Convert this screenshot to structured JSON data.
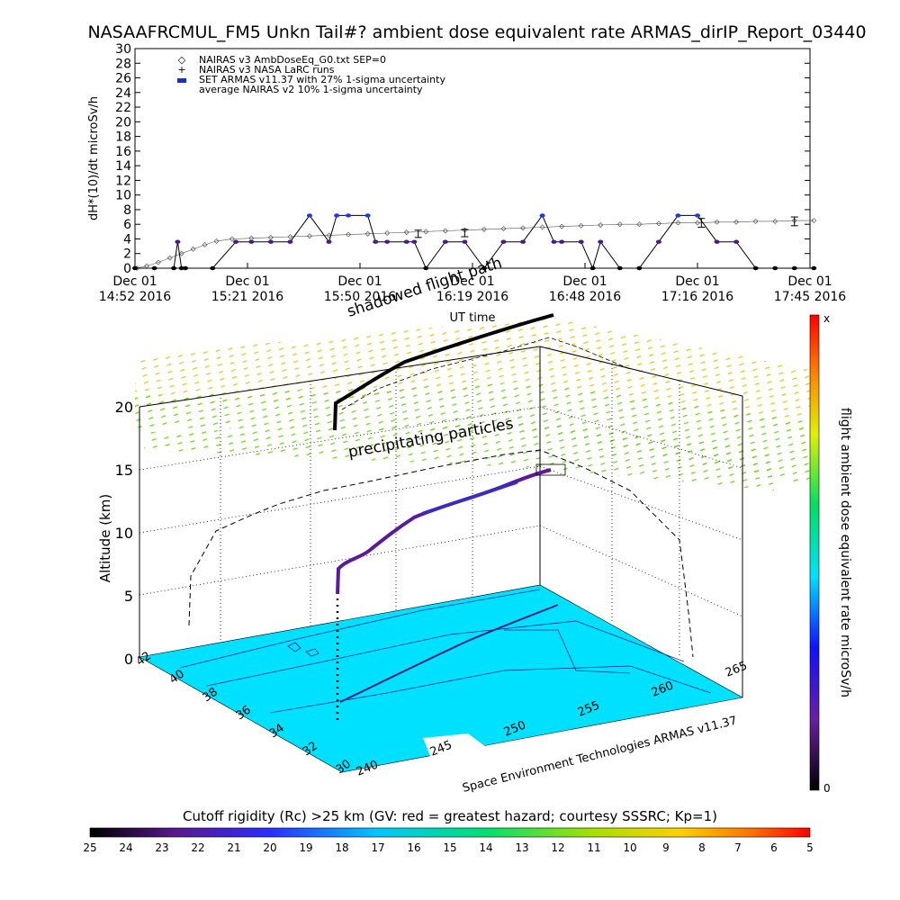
{
  "title": "NASAAFRCMUL_FM5 Unkn Tail#? ambient dose equivalent rate ARMAS_dirIP_Report_03440",
  "chart_data": [
    {
      "type": "line",
      "ylabel": "dH*(10)/dt microSv/h",
      "xlabel": "UT time",
      "ylim": [
        0,
        30
      ],
      "yticks": [
        "0",
        "2",
        "4",
        "6",
        "8",
        "10",
        "12",
        "14",
        "16",
        "18",
        "20",
        "22",
        "24",
        "26",
        "28",
        "30"
      ],
      "xticks": [
        {
          "line1": "Dec 01",
          "line2": "14:52 2016"
        },
        {
          "line1": "Dec 01",
          "line2": "15:21 2016"
        },
        {
          "line1": "Dec 01",
          "line2": "15:50 2016"
        },
        {
          "line1": "Dec 01",
          "line2": "16:19 2016"
        },
        {
          "line1": "Dec 01",
          "line2": "16:48 2016"
        },
        {
          "line1": "Dec 01",
          "line2": "17:16 2016"
        },
        {
          "line1": "Dec 01",
          "line2": "17:45 2016"
        }
      ],
      "legend": [
        {
          "symbol": "◇",
          "label": "NAIRAS v3 AmbDoseEq_G0.txt SEP=0"
        },
        {
          "symbol": "+",
          "label": "NAIRAS v3 NASA LaRC runs"
        },
        {
          "symbol": "●",
          "label": "SET ARMAS v11.37 with 27% 1-sigma uncertainty"
        },
        {
          "symbol": "",
          "label": "average NAIRAS v2 10% 1-sigma uncertainty"
        }
      ],
      "series": [
        {
          "name": "NAIRAS v3 AmbDoseEq_G0.txt SEP=0",
          "x_minutes": [
            0.5,
            3,
            6,
            9,
            12,
            15,
            18,
            21,
            25,
            30,
            35,
            40,
            45,
            50,
            55,
            60,
            65,
            70,
            75,
            80,
            85,
            90,
            95,
            100,
            105,
            110,
            115,
            120,
            125,
            130,
            135,
            140,
            145,
            150,
            155,
            160,
            165,
            170,
            175
          ],
          "values": [
            0,
            0.3,
            0.8,
            1.4,
            2.0,
            2.6,
            3.2,
            3.7,
            4.0,
            4.1,
            4.2,
            4.3,
            4.4,
            4.5,
            4.6,
            4.7,
            4.8,
            4.9,
            5.0,
            5.1,
            5.2,
            5.3,
            5.4,
            5.5,
            5.6,
            5.7,
            5.8,
            5.9,
            6.0,
            6.0,
            6.1,
            6.2,
            6.2,
            6.3,
            6.3,
            6.4,
            6.4,
            6.5,
            6.5
          ]
        },
        {
          "name": "SET ARMAS v11.37 with 27% 1-sigma uncertainty",
          "x_minutes": [
            0,
            5,
            10,
            11,
            12,
            13,
            20,
            26,
            30,
            35,
            40,
            45,
            50,
            52,
            55,
            60,
            62,
            65,
            70,
            72,
            75,
            80,
            85,
            90,
            95,
            100,
            105,
            108,
            110,
            115,
            118,
            120,
            125,
            130,
            135,
            140,
            145,
            150,
            155,
            160,
            165,
            170,
            175
          ],
          "values": [
            0,
            0,
            0,
            3.6,
            0,
            0,
            0,
            3.6,
            3.6,
            3.6,
            3.6,
            7.2,
            3.6,
            7.2,
            7.2,
            7.2,
            3.6,
            3.6,
            3.6,
            3.6,
            0,
            3.6,
            3.6,
            0,
            3.6,
            3.6,
            7.2,
            3.6,
            3.6,
            3.6,
            0,
            3.6,
            0,
            0,
            3.6,
            7.2,
            7.2,
            3.6,
            3.6,
            0,
            0,
            0,
            0
          ]
        }
      ],
      "error_bars": [
        {
          "x_minutes": 73,
          "value": 4.7,
          "err": 0.5
        },
        {
          "x_minutes": 85,
          "value": 4.8,
          "err": 0.5
        },
        {
          "x_minutes": 146,
          "value": 6.2,
          "err": 0.6
        },
        {
          "x_minutes": 170,
          "value": 6.4,
          "err": 0.6
        }
      ]
    },
    {
      "type": "3d-trajectory",
      "zlabel": "Altitude (km)",
      "zticks": [
        "0",
        "5",
        "10",
        "15",
        "20"
      ],
      "lat_ticks": [
        "42",
        "40",
        "38",
        "36",
        "34",
        "32",
        "30"
      ],
      "lon_ticks": [
        "240",
        "245",
        "250",
        "255",
        "260",
        "265"
      ],
      "annotations": [
        "shadowed flight path",
        "precipitating particles"
      ],
      "footer": "Space Environment Technologies ARMAS v11.37",
      "colorbar_label": "flight ambient dose equivalent rate microSv/h",
      "colorbar_top": "x",
      "colorbar_bottom": "0"
    },
    {
      "type": "colorbar",
      "title": "Cutoff rigidity (Rc) >25 km (GV: red = greatest hazard; courtesy SSSRC; Kp=1)",
      "ticks": [
        "25",
        "24",
        "23",
        "22",
        "21",
        "20",
        "19",
        "18",
        "17",
        "16",
        "15",
        "14",
        "13",
        "12",
        "11",
        "10",
        "9",
        "8",
        "7",
        "6",
        "5"
      ]
    }
  ]
}
